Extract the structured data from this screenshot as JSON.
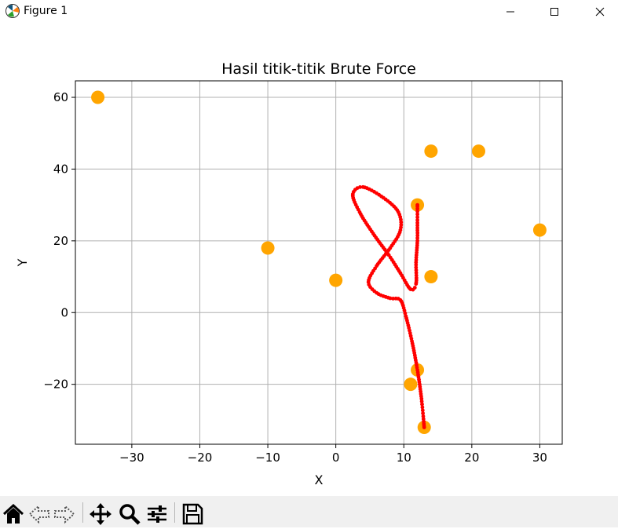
{
  "window": {
    "title": "Figure 1"
  },
  "toolbar": {
    "icons": [
      "home-icon",
      "back-icon",
      "forward-icon",
      "pan-icon",
      "zoom-icon",
      "configure-subplots-icon",
      "save-icon"
    ]
  },
  "chart_data": {
    "type": "scatter",
    "title": "Hasil titik-titik Brute Force",
    "xlabel": "X",
    "ylabel": "Y",
    "xlim": [
      -38.3,
      33.3
    ],
    "ylim": [
      -36.7,
      64.6
    ],
    "xticks": [
      -30,
      -20,
      -10,
      0,
      10,
      20,
      30
    ],
    "yticks": [
      -20,
      0,
      20,
      40,
      60
    ],
    "xtick_labels": [
      "−30",
      "−20",
      "−10",
      "0",
      "10",
      "20",
      "30"
    ],
    "ytick_labels": [
      "−20",
      "0",
      "20",
      "40",
      "60"
    ],
    "grid": true,
    "series": [
      {
        "style": "points",
        "color": "#ffa500",
        "points": [
          [
            -35,
            60
          ],
          [
            14,
            45
          ],
          [
            21,
            45
          ],
          [
            12,
            30
          ],
          [
            30,
            23
          ],
          [
            -10,
            18
          ],
          [
            14,
            10
          ],
          [
            0,
            9
          ],
          [
            12,
            -16
          ],
          [
            11,
            -20
          ],
          [
            13,
            -32
          ]
        ]
      },
      {
        "style": "curve",
        "color": "#ff0000",
        "points": [
          [
            13,
            -32
          ],
          [
            12.6,
            -24
          ],
          [
            12,
            -16
          ],
          [
            11.2,
            -8
          ],
          [
            10.3,
            -1
          ],
          [
            9.5,
            3.5
          ],
          [
            8,
            4
          ],
          [
            6,
            5.5
          ],
          [
            4.8,
            8.5
          ],
          [
            6,
            13
          ],
          [
            8,
            18
          ],
          [
            9.5,
            23
          ],
          [
            9.2,
            28
          ],
          [
            7,
            32
          ],
          [
            4,
            35
          ],
          [
            2.5,
            33
          ],
          [
            3.5,
            28
          ],
          [
            5.5,
            22
          ],
          [
            7.8,
            16
          ],
          [
            9.5,
            11
          ],
          [
            11,
            6.5
          ],
          [
            11.8,
            8
          ],
          [
            11.8,
            14
          ],
          [
            12,
            20
          ],
          [
            12,
            25
          ],
          [
            12,
            30
          ]
        ]
      }
    ]
  }
}
